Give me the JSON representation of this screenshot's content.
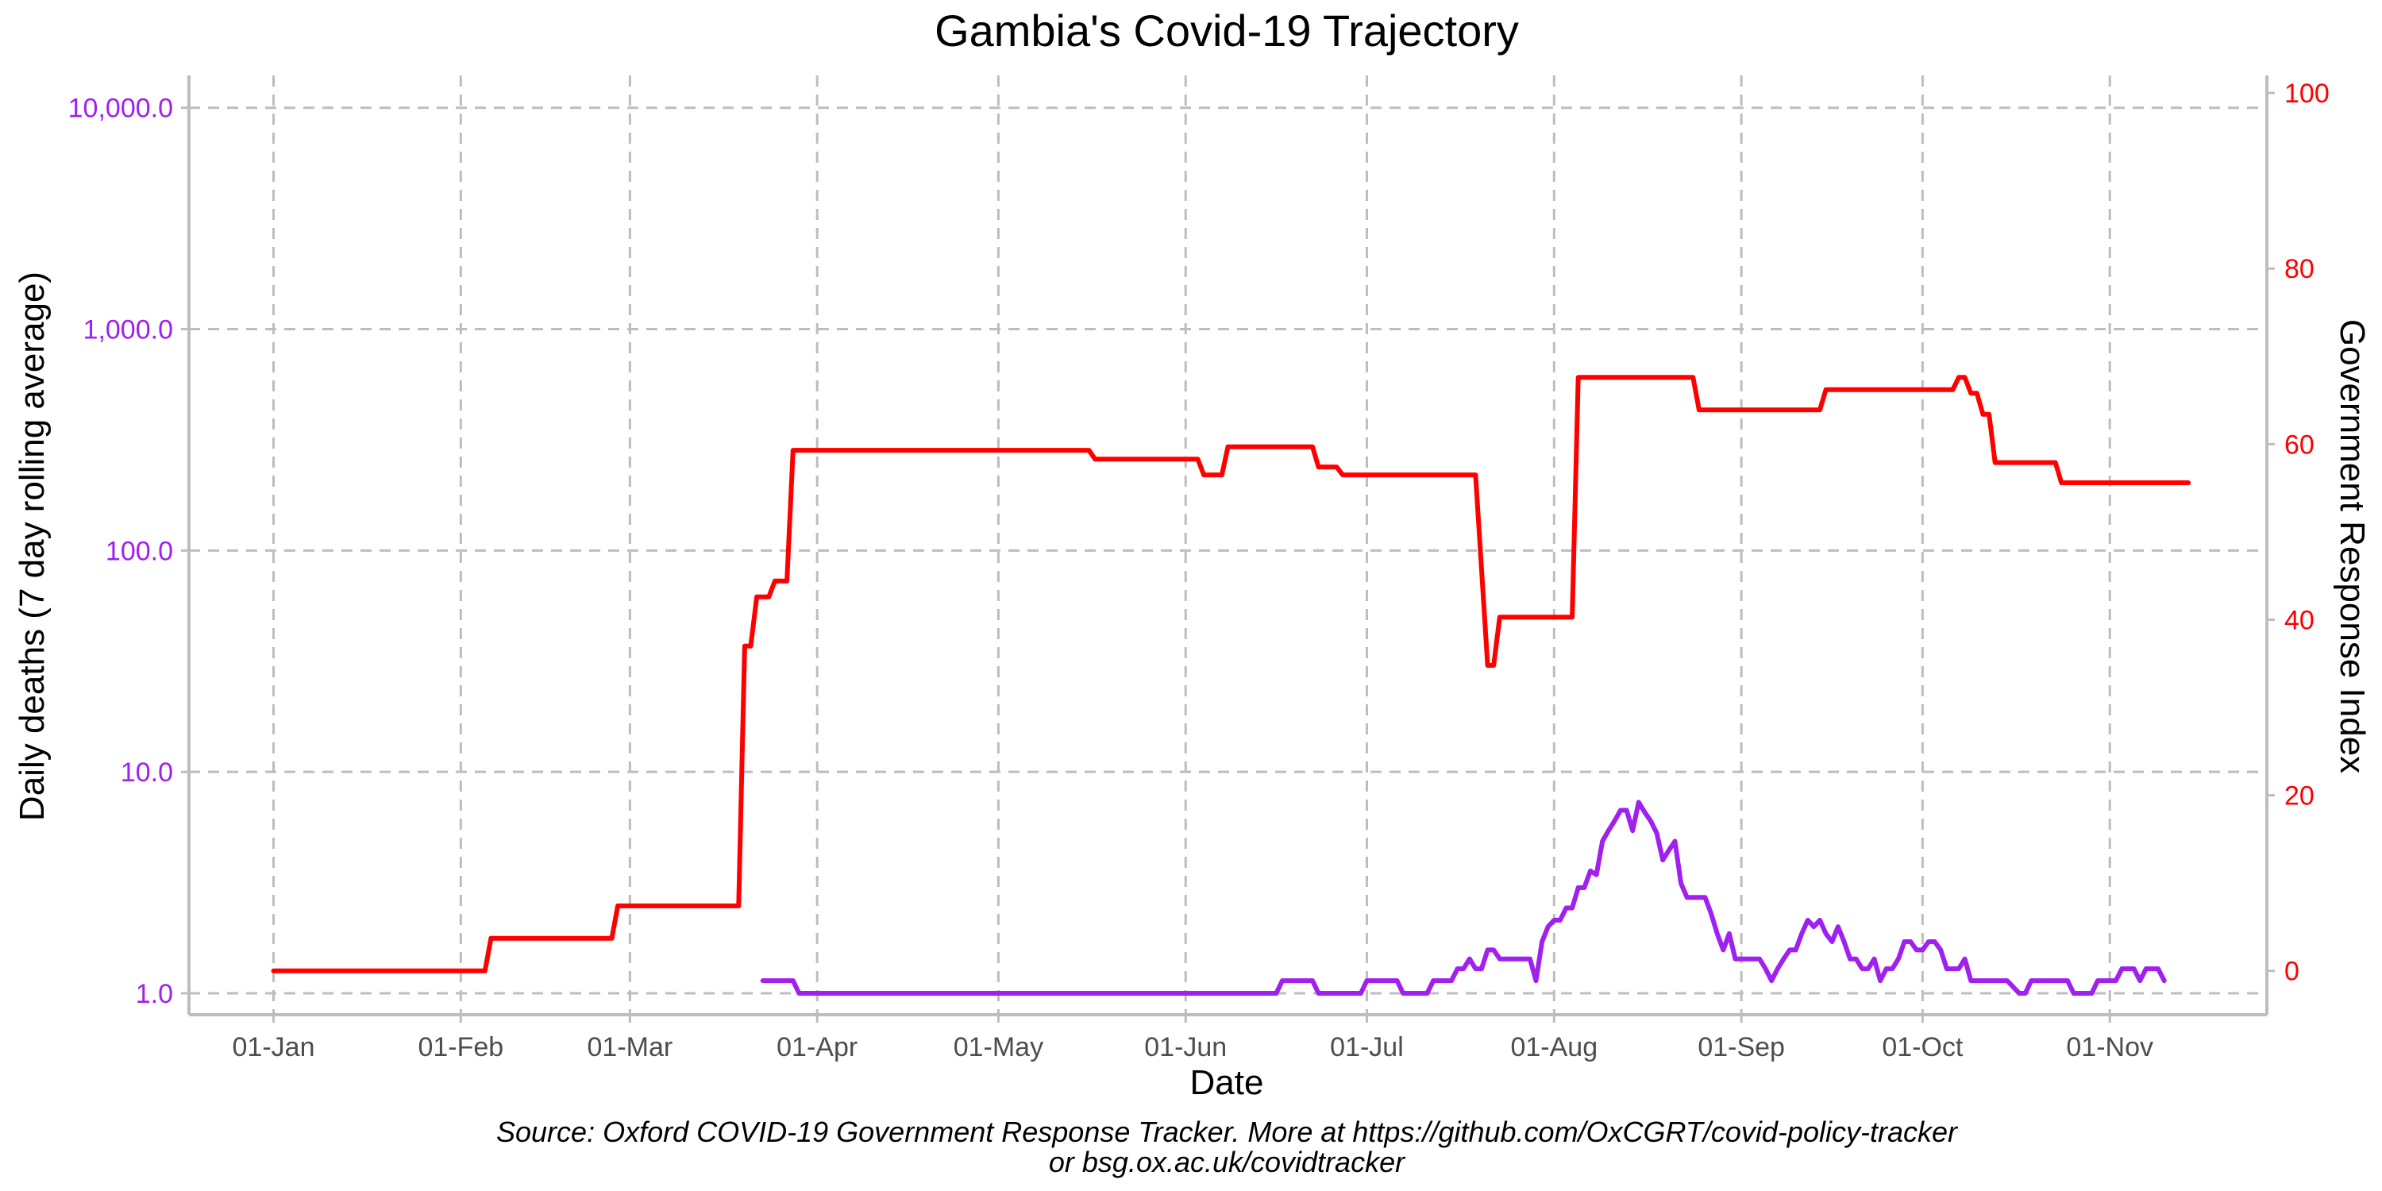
{
  "chart_data": {
    "type": "line",
    "title": "Gambia's Covid-19 Trajectory",
    "xlabel": "Date",
    "ylabel_left": "Daily deaths (7 day rolling average)",
    "ylabel_right": "Government Response Index",
    "caption_line1": "Source: Oxford COVID-19 Government Response Tracker. More at https://github.com/OxCGRT/covid-policy-tracker",
    "caption_line2": "or bsg.ox.ac.uk/covidtracker",
    "colors": {
      "deaths": "#a020f0",
      "index": "#ff0000",
      "grid": "#bdbdbd",
      "axis": "#bdbdbd"
    },
    "grid": true,
    "x_range": [
      "2020-12-18",
      "2021-11-27"
    ],
    "x_ticks": [
      {
        "date": "2021-01-01",
        "label": "01-Jan"
      },
      {
        "date": "2021-02-01",
        "label": "01-Feb"
      },
      {
        "date": "2021-03-01",
        "label": "01-Mar"
      },
      {
        "date": "2021-04-01",
        "label": "01-Apr"
      },
      {
        "date": "2021-05-01",
        "label": "01-May"
      },
      {
        "date": "2021-06-01",
        "label": "01-Jun"
      },
      {
        "date": "2021-07-01",
        "label": "01-Jul"
      },
      {
        "date": "2021-08-01",
        "label": "01-Aug"
      },
      {
        "date": "2021-09-01",
        "label": "01-Sep"
      },
      {
        "date": "2021-10-01",
        "label": "01-Oct"
      },
      {
        "date": "2021-11-01",
        "label": "01-Nov"
      }
    ],
    "y_left": {
      "scale": "log10",
      "range": [
        0.8,
        14000
      ],
      "ticks": [
        {
          "value": 1,
          "label": "1.0"
        },
        {
          "value": 10,
          "label": "10.0"
        },
        {
          "value": 100,
          "label": "100.0"
        },
        {
          "value": 1000,
          "label": "1,000.0"
        },
        {
          "value": 10000,
          "label": "10,000.0"
        }
      ]
    },
    "y_right": {
      "scale": "linear",
      "range": [
        -5,
        102
      ],
      "ticks": [
        {
          "value": 0,
          "label": "0"
        },
        {
          "value": 20,
          "label": "20"
        },
        {
          "value": 40,
          "label": "40"
        },
        {
          "value": 60,
          "label": "60"
        },
        {
          "value": 80,
          "label": "80"
        },
        {
          "value": 100,
          "label": "100"
        }
      ]
    },
    "series": [
      {
        "axis": "right",
        "points": [
          [
            "2021-01-01",
            0
          ],
          [
            "2021-02-05",
            0
          ],
          [
            "2021-02-06",
            3.7
          ],
          [
            "2021-02-26",
            3.7
          ],
          [
            "2021-02-27",
            7.4
          ],
          [
            "2021-03-19",
            7.4
          ],
          [
            "2021-03-20",
            37
          ],
          [
            "2021-03-21",
            37
          ],
          [
            "2021-03-22",
            42.6
          ],
          [
            "2021-03-24",
            42.6
          ],
          [
            "2021-03-25",
            44.4
          ],
          [
            "2021-03-27",
            44.4
          ],
          [
            "2021-03-28",
            59.3
          ],
          [
            "2021-05-16",
            59.3
          ],
          [
            "2021-05-17",
            58.3
          ],
          [
            "2021-06-03",
            58.3
          ],
          [
            "2021-06-04",
            56.5
          ],
          [
            "2021-06-07",
            56.5
          ],
          [
            "2021-06-08",
            59.7
          ],
          [
            "2021-06-22",
            59.7
          ],
          [
            "2021-06-23",
            57.4
          ],
          [
            "2021-06-26",
            57.4
          ],
          [
            "2021-06-27",
            56.5
          ],
          [
            "2021-07-19",
            56.5
          ],
          [
            "2021-07-21",
            34.8
          ],
          [
            "2021-07-22",
            34.8
          ],
          [
            "2021-07-23",
            40.3
          ],
          [
            "2021-08-04",
            40.3
          ],
          [
            "2021-08-05",
            67.6
          ],
          [
            "2021-08-24",
            67.6
          ],
          [
            "2021-08-25",
            63.9
          ],
          [
            "2021-09-14",
            63.9
          ],
          [
            "2021-09-15",
            66.2
          ],
          [
            "2021-10-06",
            66.2
          ],
          [
            "2021-10-07",
            67.6
          ],
          [
            "2021-10-08",
            67.6
          ],
          [
            "2021-10-09",
            65.8
          ],
          [
            "2021-10-10",
            65.8
          ],
          [
            "2021-10-11",
            63.4
          ],
          [
            "2021-10-12",
            63.4
          ],
          [
            "2021-10-13",
            57.9
          ],
          [
            "2021-10-23",
            57.9
          ],
          [
            "2021-10-24",
            55.6
          ],
          [
            "2021-11-14",
            55.6
          ]
        ]
      },
      {
        "axis": "left",
        "points": [
          [
            "2021-03-23",
            1.14
          ],
          [
            "2021-03-28",
            1.14
          ],
          [
            "2021-03-29",
            1.0
          ],
          [
            "2021-06-16",
            1.0
          ],
          [
            "2021-06-17",
            1.14
          ],
          [
            "2021-06-22",
            1.14
          ],
          [
            "2021-06-23",
            1.0
          ],
          [
            "2021-06-30",
            1.0
          ],
          [
            "2021-07-01",
            1.14
          ],
          [
            "2021-07-06",
            1.14
          ],
          [
            "2021-07-07",
            1.0
          ],
          [
            "2021-07-11",
            1.0
          ],
          [
            "2021-07-12",
            1.14
          ],
          [
            "2021-07-15",
            1.14
          ],
          [
            "2021-07-16",
            1.29
          ],
          [
            "2021-07-17",
            1.29
          ],
          [
            "2021-07-18",
            1.43
          ],
          [
            "2021-07-19",
            1.29
          ],
          [
            "2021-07-20",
            1.29
          ],
          [
            "2021-07-21",
            1.57
          ],
          [
            "2021-07-22",
            1.57
          ],
          [
            "2021-07-23",
            1.43
          ],
          [
            "2021-07-28",
            1.43
          ],
          [
            "2021-07-29",
            1.14
          ],
          [
            "2021-07-30",
            1.71
          ],
          [
            "2021-07-31",
            2.0
          ],
          [
            "2021-08-01",
            2.14
          ],
          [
            "2021-08-02",
            2.14
          ],
          [
            "2021-08-03",
            2.43
          ],
          [
            "2021-08-04",
            2.43
          ],
          [
            "2021-08-05",
            3.0
          ],
          [
            "2021-08-06",
            3.0
          ],
          [
            "2021-08-07",
            3.57
          ],
          [
            "2021-08-08",
            3.43
          ],
          [
            "2021-08-09",
            4.86
          ],
          [
            "2021-08-10",
            5.43
          ],
          [
            "2021-08-11",
            6.0
          ],
          [
            "2021-08-12",
            6.71
          ],
          [
            "2021-08-13",
            6.71
          ],
          [
            "2021-08-14",
            5.43
          ],
          [
            "2021-08-15",
            7.29
          ],
          [
            "2021-08-16",
            6.57
          ],
          [
            "2021-08-17",
            6.0
          ],
          [
            "2021-08-18",
            5.29
          ],
          [
            "2021-08-19",
            4.0
          ],
          [
            "2021-08-20",
            4.43
          ],
          [
            "2021-08-21",
            4.86
          ],
          [
            "2021-08-22",
            3.14
          ],
          [
            "2021-08-23",
            2.71
          ],
          [
            "2021-08-26",
            2.71
          ],
          [
            "2021-08-27",
            2.29
          ],
          [
            "2021-08-28",
            1.86
          ],
          [
            "2021-08-29",
            1.57
          ],
          [
            "2021-08-30",
            1.86
          ],
          [
            "2021-08-31",
            1.43
          ],
          [
            "2021-09-04",
            1.43
          ],
          [
            "2021-09-05",
            1.29
          ],
          [
            "2021-09-06",
            1.14
          ],
          [
            "2021-09-07",
            1.29
          ],
          [
            "2021-09-08",
            1.43
          ],
          [
            "2021-09-09",
            1.57
          ],
          [
            "2021-09-10",
            1.57
          ],
          [
            "2021-09-11",
            1.86
          ],
          [
            "2021-09-12",
            2.14
          ],
          [
            "2021-09-13",
            2.0
          ],
          [
            "2021-09-14",
            2.14
          ],
          [
            "2021-09-15",
            1.86
          ],
          [
            "2021-09-16",
            1.71
          ],
          [
            "2021-09-17",
            2.0
          ],
          [
            "2021-09-18",
            1.71
          ],
          [
            "2021-09-19",
            1.43
          ],
          [
            "2021-09-20",
            1.43
          ],
          [
            "2021-09-21",
            1.29
          ],
          [
            "2021-09-22",
            1.29
          ],
          [
            "2021-09-23",
            1.43
          ],
          [
            "2021-09-24",
            1.14
          ],
          [
            "2021-09-25",
            1.29
          ],
          [
            "2021-09-26",
            1.29
          ],
          [
            "2021-09-27",
            1.43
          ],
          [
            "2021-09-28",
            1.71
          ],
          [
            "2021-09-29",
            1.71
          ],
          [
            "2021-09-30",
            1.57
          ],
          [
            "2021-10-01",
            1.57
          ],
          [
            "2021-10-02",
            1.71
          ],
          [
            "2021-10-03",
            1.71
          ],
          [
            "2021-10-04",
            1.57
          ],
          [
            "2021-10-05",
            1.29
          ],
          [
            "2021-10-07",
            1.29
          ],
          [
            "2021-10-08",
            1.43
          ],
          [
            "2021-10-09",
            1.14
          ],
          [
            "2021-10-15",
            1.14
          ],
          [
            "2021-10-17",
            1.0
          ],
          [
            "2021-10-18",
            1.0
          ],
          [
            "2021-10-19",
            1.14
          ],
          [
            "2021-10-25",
            1.14
          ],
          [
            "2021-10-26",
            1.0
          ],
          [
            "2021-10-29",
            1.0
          ],
          [
            "2021-10-30",
            1.14
          ],
          [
            "2021-11-02",
            1.14
          ],
          [
            "2021-11-03",
            1.29
          ],
          [
            "2021-11-05",
            1.29
          ],
          [
            "2021-11-06",
            1.14
          ],
          [
            "2021-11-07",
            1.29
          ],
          [
            "2021-11-09",
            1.29
          ],
          [
            "2021-11-10",
            1.14
          ]
        ]
      }
    ]
  }
}
